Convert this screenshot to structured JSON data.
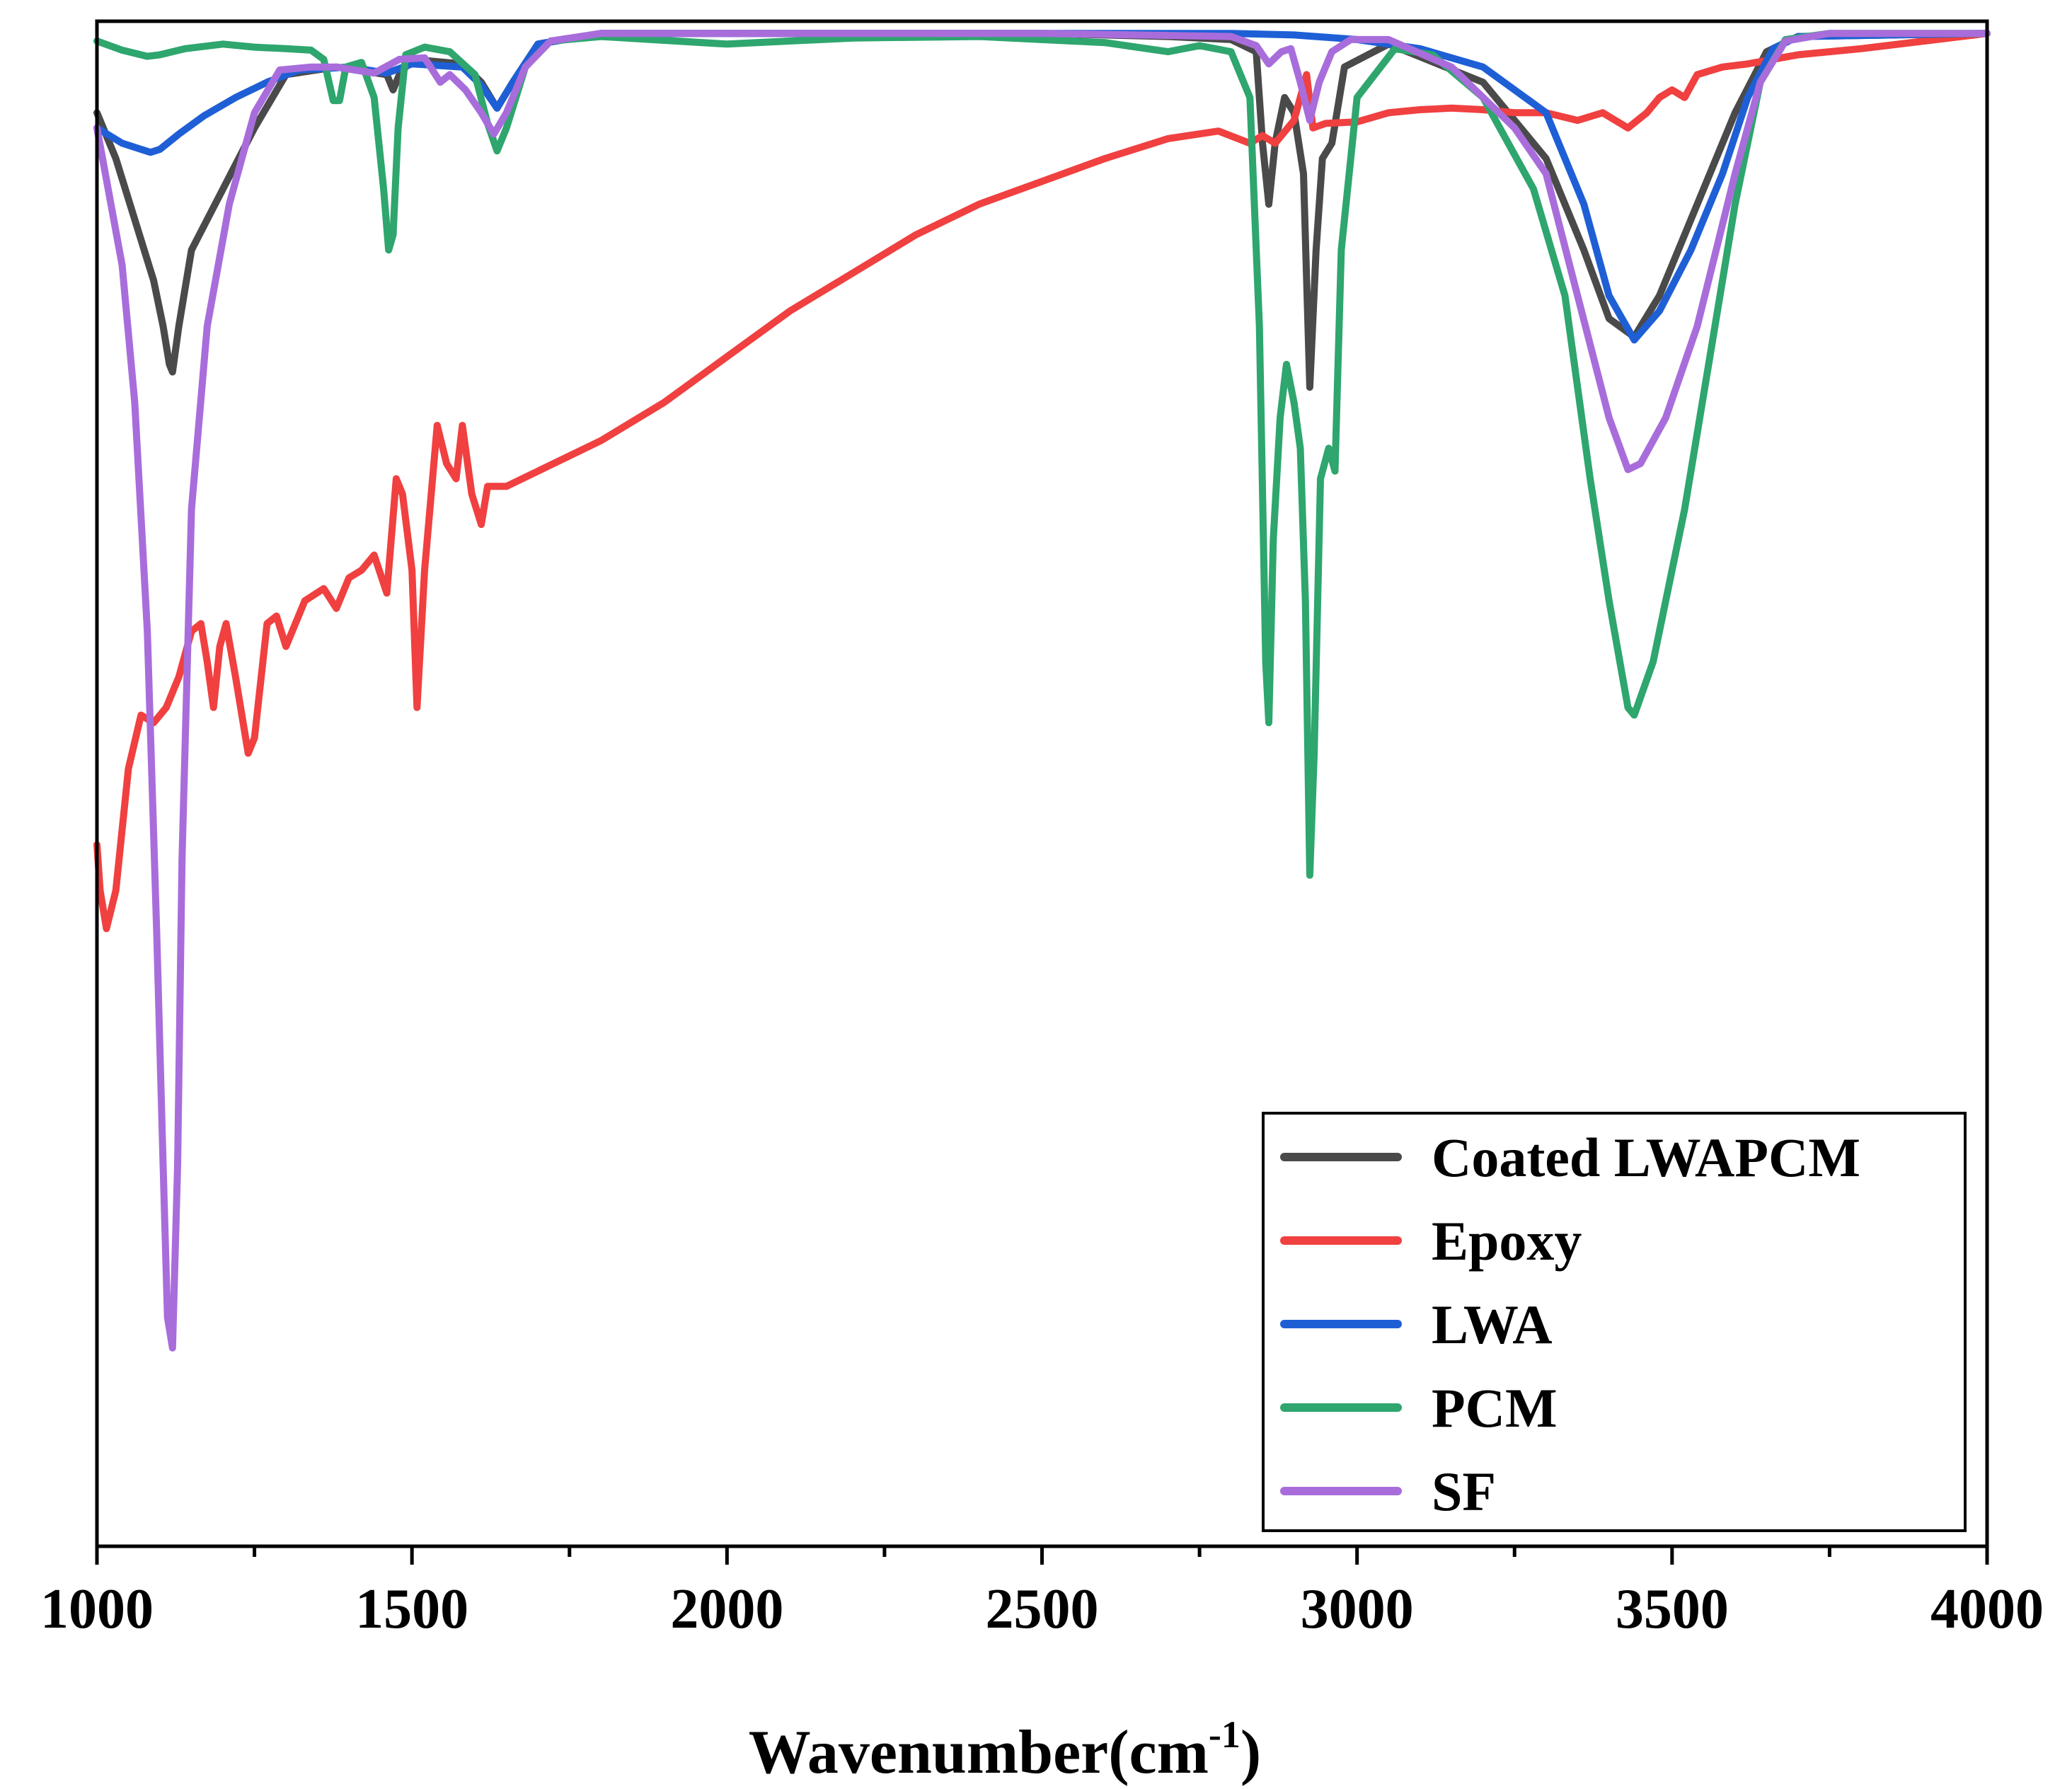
{
  "chart_data": {
    "type": "line",
    "xlabel": "Wavenumber(cm",
    "xlabel_superscript": "-1",
    "xlabel_suffix": ")",
    "xlim": [
      1000,
      4000
    ],
    "ylim": [
      0,
      100
    ],
    "y_ticks_shown": false,
    "grid": false,
    "legend_position": "bottom-right",
    "x_ticks": [
      "1000",
      "1500",
      "2000",
      "2500",
      "3000",
      "3500",
      "4000"
    ],
    "x_tick_values": [
      1000,
      1500,
      2000,
      2500,
      3000,
      3500,
      4000
    ],
    "x_minor_tick_values": [
      1250,
      1750,
      2250,
      2750,
      3250,
      3750
    ],
    "series": [
      {
        "name": "Coated LWAPCM",
        "color": "#4a4a4a",
        "points": [
          [
            1000,
            94
          ],
          [
            1030,
            91
          ],
          [
            1060,
            87
          ],
          [
            1090,
            83
          ],
          [
            1105,
            80
          ],
          [
            1115,
            77.5
          ],
          [
            1120,
            77
          ],
          [
            1130,
            80
          ],
          [
            1150,
            85
          ],
          [
            1200,
            89
          ],
          [
            1250,
            93
          ],
          [
            1300,
            96.5
          ],
          [
            1380,
            97
          ],
          [
            1460,
            96.5
          ],
          [
            1470,
            95.5
          ],
          [
            1480,
            96.5
          ],
          [
            1500,
            97.5
          ],
          [
            1580,
            97.2
          ],
          [
            1610,
            96
          ],
          [
            1635,
            94.3
          ],
          [
            1660,
            96
          ],
          [
            1700,
            98.5
          ],
          [
            1800,
            99.2
          ],
          [
            2500,
            99.2
          ],
          [
            2700,
            99
          ],
          [
            2800,
            98.8
          ],
          [
            2840,
            98
          ],
          [
            2850,
            92
          ],
          [
            2860,
            88
          ],
          [
            2870,
            92
          ],
          [
            2885,
            95
          ],
          [
            2900,
            94
          ],
          [
            2915,
            90
          ],
          [
            2925,
            76
          ],
          [
            2935,
            85
          ],
          [
            2945,
            91
          ],
          [
            2960,
            92
          ],
          [
            2980,
            97
          ],
          [
            3050,
            98.5
          ],
          [
            3200,
            96
          ],
          [
            3300,
            91
          ],
          [
            3360,
            85
          ],
          [
            3400,
            80.5
          ],
          [
            3440,
            79.3
          ],
          [
            3480,
            82
          ],
          [
            3530,
            87
          ],
          [
            3600,
            94
          ],
          [
            3650,
            98
          ],
          [
            3700,
            99
          ],
          [
            4000,
            99.2
          ]
        ]
      },
      {
        "name": "Epoxy",
        "color": "#f04040",
        "points": [
          [
            1000,
            46
          ],
          [
            1005,
            43
          ],
          [
            1015,
            40.5
          ],
          [
            1030,
            43
          ],
          [
            1050,
            51
          ],
          [
            1070,
            54.5
          ],
          [
            1090,
            54
          ],
          [
            1110,
            55
          ],
          [
            1130,
            57
          ],
          [
            1150,
            60
          ],
          [
            1165,
            60.5
          ],
          [
            1175,
            58
          ],
          [
            1185,
            55
          ],
          [
            1195,
            59
          ],
          [
            1205,
            60.5
          ],
          [
            1220,
            57
          ],
          [
            1240,
            52
          ],
          [
            1250,
            53
          ],
          [
            1270,
            60.5
          ],
          [
            1285,
            61
          ],
          [
            1300,
            59
          ],
          [
            1330,
            62
          ],
          [
            1360,
            62.8
          ],
          [
            1380,
            61.5
          ],
          [
            1400,
            63.5
          ],
          [
            1420,
            64
          ],
          [
            1440,
            65
          ],
          [
            1460,
            62.5
          ],
          [
            1475,
            70
          ],
          [
            1485,
            69
          ],
          [
            1500,
            64
          ],
          [
            1508,
            55
          ],
          [
            1520,
            64
          ],
          [
            1540,
            73.5
          ],
          [
            1555,
            71
          ],
          [
            1570,
            70
          ],
          [
            1580,
            73.5
          ],
          [
            1595,
            69
          ],
          [
            1610,
            67
          ],
          [
            1620,
            69.5
          ],
          [
            1650,
            69.5
          ],
          [
            1700,
            70.5
          ],
          [
            1800,
            72.5
          ],
          [
            1900,
            75
          ],
          [
            2000,
            78
          ],
          [
            2100,
            81
          ],
          [
            2200,
            83.5
          ],
          [
            2300,
            86
          ],
          [
            2400,
            88
          ],
          [
            2500,
            89.5
          ],
          [
            2600,
            91
          ],
          [
            2700,
            92.3
          ],
          [
            2780,
            92.8
          ],
          [
            2830,
            92
          ],
          [
            2850,
            92.5
          ],
          [
            2870,
            92
          ],
          [
            2900,
            93.5
          ],
          [
            2910,
            95
          ],
          [
            2920,
            96.5
          ],
          [
            2930,
            93
          ],
          [
            2950,
            93.3
          ],
          [
            3000,
            93.4
          ],
          [
            3050,
            94
          ],
          [
            3100,
            94.2
          ],
          [
            3150,
            94.3
          ],
          [
            3200,
            94.2
          ],
          [
            3250,
            94
          ],
          [
            3300,
            94
          ],
          [
            3350,
            93.5
          ],
          [
            3390,
            94
          ],
          [
            3410,
            93.5
          ],
          [
            3430,
            93
          ],
          [
            3460,
            94
          ],
          [
            3480,
            95
          ],
          [
            3500,
            95.5
          ],
          [
            3520,
            95
          ],
          [
            3540,
            96.5
          ],
          [
            3580,
            97
          ],
          [
            3620,
            97.2
          ],
          [
            3700,
            97.8
          ],
          [
            3800,
            98.2
          ],
          [
            3900,
            98.7
          ],
          [
            4000,
            99.2
          ]
        ]
      },
      {
        "name": "LWA",
        "color": "#1f5fd6",
        "points": [
          [
            1000,
            93
          ],
          [
            1040,
            92
          ],
          [
            1070,
            91.6
          ],
          [
            1085,
            91.4
          ],
          [
            1100,
            91.6
          ],
          [
            1130,
            92.6
          ],
          [
            1170,
            93.8
          ],
          [
            1220,
            95
          ],
          [
            1270,
            96
          ],
          [
            1320,
            96.8
          ],
          [
            1400,
            97
          ],
          [
            1460,
            96.6
          ],
          [
            1500,
            97.2
          ],
          [
            1580,
            97
          ],
          [
            1610,
            95.8
          ],
          [
            1635,
            94.3
          ],
          [
            1660,
            96
          ],
          [
            1700,
            98.5
          ],
          [
            1800,
            99.2
          ],
          [
            2500,
            99.2
          ],
          [
            2800,
            99.2
          ],
          [
            2900,
            99.1
          ],
          [
            3000,
            98.8
          ],
          [
            3100,
            98.2
          ],
          [
            3200,
            97
          ],
          [
            3300,
            94
          ],
          [
            3360,
            88
          ],
          [
            3400,
            82
          ],
          [
            3440,
            79.1
          ],
          [
            3480,
            81
          ],
          [
            3530,
            85
          ],
          [
            3580,
            90
          ],
          [
            3620,
            95
          ],
          [
            3660,
            98.2
          ],
          [
            3700,
            99
          ],
          [
            4000,
            99.2
          ]
        ]
      },
      {
        "name": "PCM",
        "color": "#2ea66e",
        "points": [
          [
            1000,
            98.7
          ],
          [
            1040,
            98.1
          ],
          [
            1080,
            97.7
          ],
          [
            1100,
            97.8
          ],
          [
            1140,
            98.2
          ],
          [
            1200,
            98.5
          ],
          [
            1250,
            98.3
          ],
          [
            1300,
            98.2
          ],
          [
            1340,
            98.1
          ],
          [
            1360,
            97.5
          ],
          [
            1375,
            94.8
          ],
          [
            1385,
            94.8
          ],
          [
            1395,
            97
          ],
          [
            1420,
            97.3
          ],
          [
            1440,
            95
          ],
          [
            1455,
            89
          ],
          [
            1463,
            85
          ],
          [
            1470,
            86
          ],
          [
            1478,
            93
          ],
          [
            1490,
            97.8
          ],
          [
            1520,
            98.3
          ],
          [
            1560,
            98
          ],
          [
            1600,
            96.5
          ],
          [
            1620,
            93.3
          ],
          [
            1635,
            91.5
          ],
          [
            1650,
            93
          ],
          [
            1680,
            97
          ],
          [
            1720,
            98.7
          ],
          [
            1800,
            99
          ],
          [
            2000,
            98.5
          ],
          [
            2200,
            98.9
          ],
          [
            2400,
            99
          ],
          [
            2600,
            98.6
          ],
          [
            2700,
            98
          ],
          [
            2750,
            98.4
          ],
          [
            2800,
            98
          ],
          [
            2830,
            95
          ],
          [
            2845,
            80
          ],
          [
            2855,
            58
          ],
          [
            2860,
            54
          ],
          [
            2867,
            66
          ],
          [
            2878,
            74
          ],
          [
            2888,
            77.5
          ],
          [
            2900,
            75
          ],
          [
            2910,
            72
          ],
          [
            2918,
            62
          ],
          [
            2925,
            44
          ],
          [
            2932,
            52
          ],
          [
            2942,
            70
          ],
          [
            2955,
            72
          ],
          [
            2965,
            70.5
          ],
          [
            2975,
            85
          ],
          [
            3000,
            95
          ],
          [
            3060,
            98.2
          ],
          [
            3120,
            97.8
          ],
          [
            3200,
            95
          ],
          [
            3280,
            89
          ],
          [
            3330,
            82
          ],
          [
            3370,
            70
          ],
          [
            3400,
            62
          ],
          [
            3430,
            55
          ],
          [
            3440,
            54.5
          ],
          [
            3470,
            58
          ],
          [
            3520,
            68
          ],
          [
            3560,
            78
          ],
          [
            3600,
            88
          ],
          [
            3640,
            96
          ],
          [
            3680,
            98.8
          ],
          [
            3750,
            99.2
          ],
          [
            4000,
            99.2
          ]
        ]
      },
      {
        "name": "SF",
        "color": "#a86ddb",
        "points": [
          [
            1000,
            93
          ],
          [
            1040,
            84
          ],
          [
            1060,
            75
          ],
          [
            1080,
            60
          ],
          [
            1095,
            40
          ],
          [
            1105,
            25
          ],
          [
            1112,
            15
          ],
          [
            1120,
            13
          ],
          [
            1128,
            25
          ],
          [
            1135,
            45
          ],
          [
            1150,
            68
          ],
          [
            1175,
            80
          ],
          [
            1210,
            88
          ],
          [
            1250,
            94
          ],
          [
            1290,
            96.8
          ],
          [
            1340,
            97
          ],
          [
            1380,
            97
          ],
          [
            1440,
            96.6
          ],
          [
            1480,
            97.5
          ],
          [
            1520,
            97.6
          ],
          [
            1545,
            96
          ],
          [
            1560,
            96.5
          ],
          [
            1585,
            95.5
          ],
          [
            1610,
            94
          ],
          [
            1630,
            92.6
          ],
          [
            1650,
            94
          ],
          [
            1680,
            97
          ],
          [
            1720,
            98.7
          ],
          [
            1800,
            99.2
          ],
          [
            2500,
            99.2
          ],
          [
            2800,
            99
          ],
          [
            2840,
            98.4
          ],
          [
            2860,
            97.2
          ],
          [
            2880,
            98
          ],
          [
            2895,
            98.2
          ],
          [
            2910,
            96
          ],
          [
            2925,
            93.5
          ],
          [
            2940,
            96
          ],
          [
            2960,
            98
          ],
          [
            2990,
            98.8
          ],
          [
            3050,
            98.8
          ],
          [
            3150,
            97
          ],
          [
            3250,
            93
          ],
          [
            3300,
            90
          ],
          [
            3350,
            82
          ],
          [
            3400,
            74
          ],
          [
            3430,
            70.6
          ],
          [
            3450,
            71
          ],
          [
            3490,
            74
          ],
          [
            3540,
            80
          ],
          [
            3600,
            90
          ],
          [
            3640,
            96
          ],
          [
            3680,
            98.7
          ],
          [
            3750,
            99.2
          ],
          [
            4000,
            99.2
          ]
        ]
      }
    ]
  }
}
